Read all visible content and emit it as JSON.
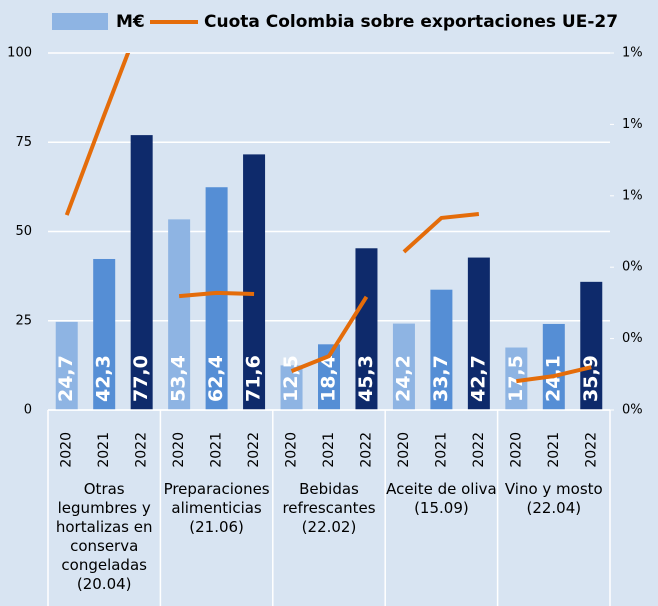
{
  "chart_data": {
    "type": "bar_line",
    "categories": [
      "2020",
      "2021",
      "2022",
      "2020",
      "2021",
      "2022",
      "2020",
      "2021",
      "2022",
      "2020",
      "2021",
      "2022",
      "2020",
      "2021",
      "2022"
    ],
    "groups": [
      "Otras legumbres y hortalizas en conserva congeladas (20.04)",
      "Preparaciones alimenticias (21.06)",
      "Bebidas refrescantes (22.02)",
      "Aceite de oliva  (15.09)",
      "Vino y mosto (22.04)"
    ],
    "series": [
      {
        "name": "M€",
        "type": "bar",
        "color": "#8eb4e3",
        "colors": [
          "#8eb4e3",
          "#558ed5",
          "#0e2a6b"
        ],
        "values": [
          24.7,
          42.3,
          77.0,
          53.4,
          62.4,
          71.6,
          12.5,
          18.4,
          45.3,
          24.2,
          33.7,
          42.7,
          17.5,
          24.1,
          35.9
        ],
        "value_labels": [
          "24,7",
          "42,3",
          "77,0",
          "53,4",
          "62,4",
          "71,6",
          "12,5",
          "18,4",
          "45,3",
          "24,2",
          "33,7",
          "42,7",
          "17,5",
          "24,1",
          "35,9"
        ]
      },
      {
        "name": "Cuota Colombia sobre exportaciones UE-27",
        "type": "line",
        "axis": "y2",
        "color": "#e46c0a",
        "values": [
          0.546,
          0.826,
          1.1,
          0.319,
          0.328,
          0.325,
          0.109,
          0.151,
          0.317,
          0.443,
          0.538,
          0.549,
          0.081,
          0.095,
          0.12
        ]
      }
    ],
    "ylim": [
      0,
      100
    ],
    "yticks": [
      0,
      25,
      50,
      75,
      100
    ],
    "y2lim": [
      0,
      1.0
    ],
    "y2ticks": [
      {
        "value": 0,
        "label": "0%"
      },
      {
        "value": 0.2,
        "label": "0%"
      },
      {
        "value": 0.4,
        "label": "0%"
      },
      {
        "value": 0.6,
        "label": "1%"
      },
      {
        "value": 0.8,
        "label": "1%"
      },
      {
        "value": 1.0,
        "label": "1%"
      }
    ],
    "grid": true
  }
}
